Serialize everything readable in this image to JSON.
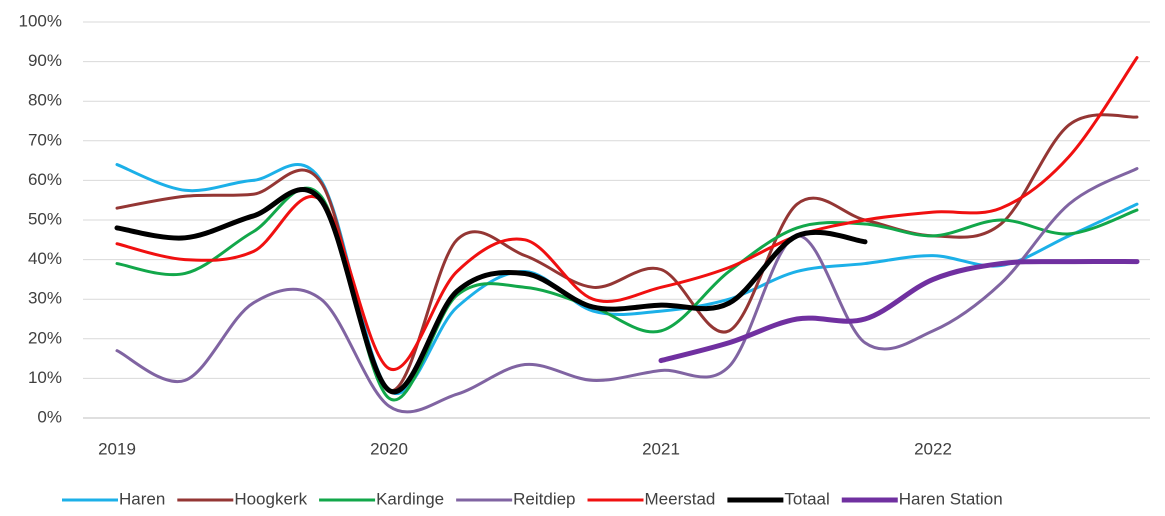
{
  "chart_data": {
    "type": "line",
    "categories": [
      "2019",
      null,
      null,
      null,
      "2020",
      null,
      null,
      null,
      "2021",
      null,
      null,
      null,
      "2022",
      null,
      null,
      null
    ],
    "ylim": [
      0,
      100
    ],
    "yticks": [
      {
        "value": 0,
        "label": "0%"
      },
      {
        "value": 10,
        "label": "10%"
      },
      {
        "value": 20,
        "label": "20%"
      },
      {
        "value": 30,
        "label": "30%"
      },
      {
        "value": 40,
        "label": "40%"
      },
      {
        "value": 50,
        "label": "50%"
      },
      {
        "value": 60,
        "label": "60%"
      },
      {
        "value": 70,
        "label": "70%"
      },
      {
        "value": 80,
        "label": "80%"
      },
      {
        "value": 90,
        "label": "90%"
      },
      {
        "value": 100,
        "label": "100%"
      }
    ],
    "grid": true,
    "legend": "bottom",
    "series": [
      {
        "name": "Haren",
        "color": "#1cb0e8",
        "width": 3,
        "values": [
          64,
          57.5,
          60,
          60,
          7,
          28,
          37,
          27,
          27,
          30,
          37,
          39,
          41,
          38.5,
          46,
          54
        ]
      },
      {
        "name": "Hoogkerk",
        "color": "#943634",
        "width": 3,
        "values": [
          53,
          56,
          56.5,
          59.5,
          7,
          45,
          41,
          33,
          37.5,
          22,
          54,
          50,
          46,
          49,
          74,
          76
        ]
      },
      {
        "name": "Kardinge",
        "color": "#12a74a",
        "width": 3,
        "values": [
          39,
          36.5,
          47,
          56,
          5,
          31,
          33,
          28,
          22,
          37,
          48,
          49,
          46,
          50,
          46.5,
          52.5
        ]
      },
      {
        "name": "Reitdiep",
        "color": "#8064a2",
        "width": 3,
        "values": [
          17,
          9.5,
          29,
          30,
          3,
          6,
          13.5,
          9.5,
          12,
          13,
          46,
          19,
          22,
          34,
          54,
          63
        ]
      },
      {
        "name": "Meerstad",
        "color": "#f01010",
        "width": 3,
        "values": [
          44,
          40,
          42,
          55,
          12.5,
          37,
          45,
          30,
          33,
          38,
          46,
          50,
          52,
          53,
          66,
          91
        ]
      },
      {
        "name": "Totaal",
        "color": "#000000",
        "width": 5,
        "values": [
          48,
          45.5,
          51,
          55,
          7,
          32,
          36.5,
          28,
          28.5,
          29,
          46,
          44.5,
          null,
          null,
          null,
          null
        ]
      },
      {
        "name": "Haren Station",
        "color": "#7030a0",
        "width": 5,
        "values": [
          null,
          null,
          null,
          null,
          null,
          null,
          null,
          null,
          14.5,
          19,
          25,
          25,
          35,
          39,
          39.5,
          39.5
        ]
      }
    ]
  }
}
